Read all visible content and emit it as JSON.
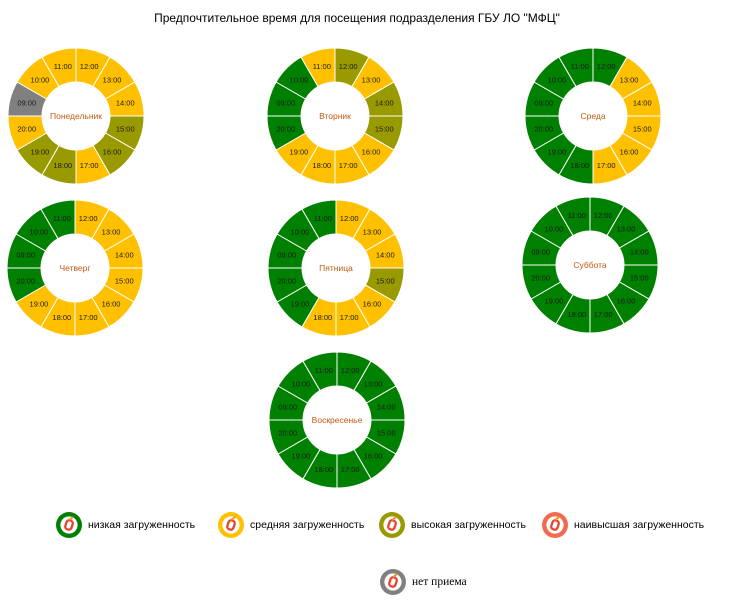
{
  "title": "Предпочтительное время для посещения подразделения ГБУ ЛО \"МФЦ\"",
  "legend": {
    "position": "bottom",
    "items": [
      {
        "label": "низкая загруженность",
        "color": "#008000",
        "icon": "mfc-logo-icon"
      },
      {
        "label": "средняя загруженность",
        "color": "#FFC000",
        "icon": "mfc-logo-icon"
      },
      {
        "label": "высокая загруженность",
        "color": "#999900",
        "icon": "mfc-logo-icon"
      },
      {
        "label": "наивысшая загруженность",
        "color": "#F26B50",
        "icon": "mfc-logo-icon"
      },
      {
        "label": "нет приема",
        "color": "#808080",
        "icon": "mfc-logo-icon"
      }
    ]
  },
  "chart_data": [
    {
      "type": "pie",
      "title": "Понедельник",
      "categories": [
        "09:00",
        "10:00",
        "11:00",
        "12:00",
        "13:00",
        "14:00",
        "15:00",
        "16:00",
        "17:00",
        "18:00",
        "19:00",
        "20:00"
      ],
      "values": [
        1,
        1,
        1,
        1,
        1,
        1,
        1,
        1,
        1,
        1,
        1,
        1
      ],
      "load": [
        4,
        1,
        1,
        1,
        1,
        1,
        2,
        2,
        1,
        2,
        2,
        1
      ]
    },
    {
      "type": "pie",
      "title": "Вторник",
      "categories": [
        "09:00",
        "10:00",
        "11:00",
        "12:00",
        "13:00",
        "14:00",
        "15:00",
        "16:00",
        "17:00",
        "18:00",
        "19:00",
        "20:00"
      ],
      "values": [
        1,
        1,
        1,
        1,
        1,
        1,
        1,
        1,
        1,
        1,
        1,
        1
      ],
      "load": [
        0,
        0,
        1,
        2,
        1,
        2,
        2,
        1,
        1,
        1,
        1,
        0
      ]
    },
    {
      "type": "pie",
      "title": "Среда",
      "categories": [
        "09:00",
        "10:00",
        "11:00",
        "12:00",
        "13:00",
        "14:00",
        "15:00",
        "16:00",
        "17:00",
        "18:00",
        "19:00",
        "20:00"
      ],
      "values": [
        1,
        1,
        1,
        1,
        1,
        1,
        1,
        1,
        1,
        1,
        1,
        1
      ],
      "load": [
        0,
        0,
        0,
        0,
        1,
        1,
        1,
        1,
        1,
        0,
        0,
        0
      ]
    },
    {
      "type": "pie",
      "title": "Четверг",
      "categories": [
        "09:00",
        "10:00",
        "11:00",
        "12:00",
        "13:00",
        "14:00",
        "15:00",
        "16:00",
        "17:00",
        "18:00",
        "19:00",
        "20:00"
      ],
      "values": [
        1,
        1,
        1,
        1,
        1,
        1,
        1,
        1,
        1,
        1,
        1,
        1
      ],
      "load": [
        0,
        0,
        0,
        1,
        1,
        1,
        1,
        1,
        1,
        1,
        1,
        0
      ]
    },
    {
      "type": "pie",
      "title": "Пятница",
      "categories": [
        "09:00",
        "10:00",
        "11:00",
        "12:00",
        "13:00",
        "14:00",
        "15:00",
        "16:00",
        "17:00",
        "18:00",
        "19:00",
        "20:00"
      ],
      "values": [
        1,
        1,
        1,
        1,
        1,
        1,
        1,
        1,
        1,
        1,
        1,
        1
      ],
      "load": [
        0,
        0,
        0,
        1,
        1,
        1,
        2,
        1,
        1,
        1,
        0,
        0
      ]
    },
    {
      "type": "pie",
      "title": "Суббота",
      "categories": [
        "09:00",
        "10:00",
        "11:00",
        "12:00",
        "13:00",
        "14:00",
        "15:00",
        "16:00",
        "17:00",
        "18:00",
        "19:00",
        "20:00"
      ],
      "values": [
        1,
        1,
        1,
        1,
        1,
        1,
        1,
        1,
        1,
        1,
        1,
        1
      ],
      "load": [
        0,
        0,
        0,
        0,
        0,
        0,
        0,
        0,
        0,
        0,
        0,
        0
      ]
    },
    {
      "type": "pie",
      "title": "Воскресенье",
      "categories": [
        "09:00",
        "10:00",
        "11:00",
        "12:00",
        "13:00",
        "14:00",
        "15:00",
        "16:00",
        "17:00",
        "18:00",
        "19:00",
        "20:00"
      ],
      "values": [
        1,
        1,
        1,
        1,
        1,
        1,
        1,
        1,
        1,
        1,
        1,
        1
      ],
      "load": [
        0,
        0,
        0,
        0,
        0,
        0,
        0,
        0,
        0,
        0,
        0,
        0
      ]
    }
  ]
}
